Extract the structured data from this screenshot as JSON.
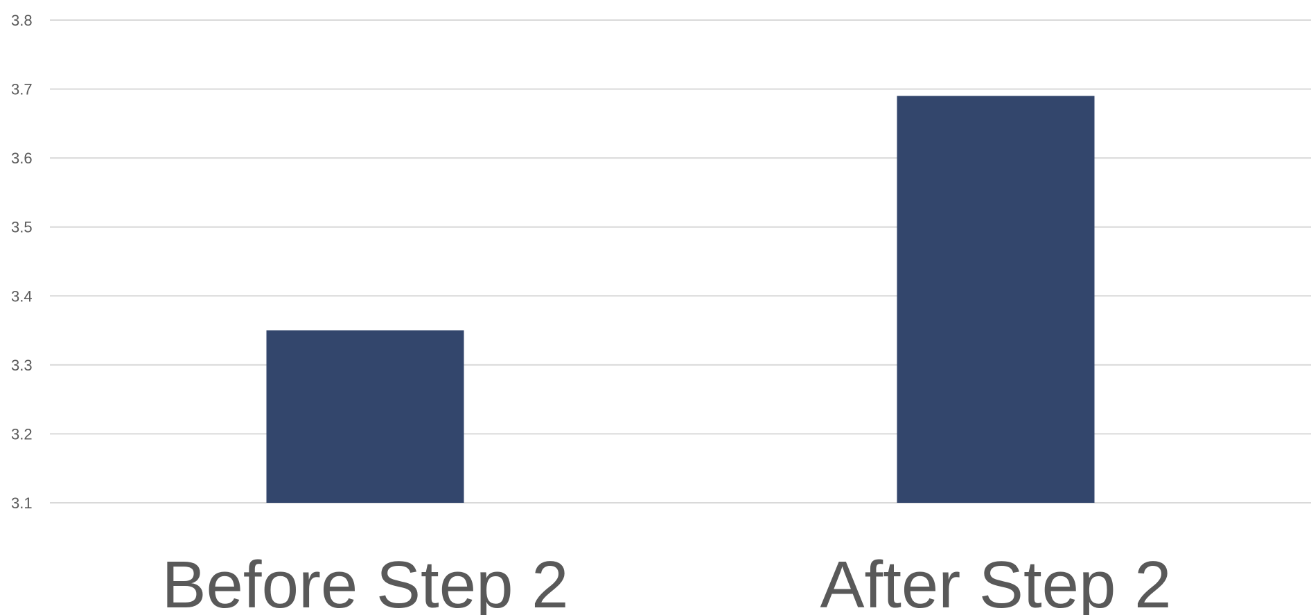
{
  "chart_data": {
    "type": "bar",
    "categories": [
      "Before Step 2",
      "After Step 2"
    ],
    "values": [
      3.35,
      3.69
    ],
    "ylim": [
      3.1,
      3.8
    ],
    "yticks": [
      "3.1",
      "3.2",
      "3.3",
      "3.4",
      "3.5",
      "3.6",
      "3.7",
      "3.8"
    ],
    "grid": true,
    "legend": "none",
    "title": "",
    "xlabel": "",
    "ylabel": "",
    "bar_color": "#33466c",
    "grid_color": "#d9d9d9",
    "text_color": "#595959"
  }
}
